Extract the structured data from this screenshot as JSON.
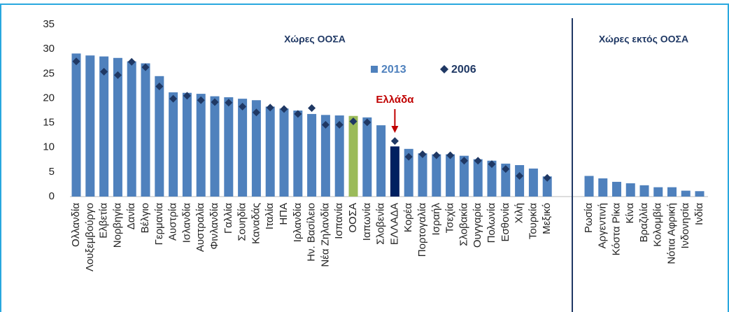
{
  "chart_data": {
    "type": "bar",
    "series": [
      {
        "name": "2013",
        "color": "#4f81bd",
        "marker": "bar"
      },
      {
        "name": "2006",
        "color": "#1f3864",
        "marker": "diamond"
      }
    ],
    "groups": [
      {
        "title": "Χώρες ΟΟΣΑ",
        "categories": [
          "Ολλανδία",
          "Λουξεμβούργο",
          "Ελβετία",
          "Νορβηγία",
          "Δανία",
          "Βέλγιο",
          "Γερμανία",
          "Αυστρία",
          "Ισλανδία",
          "Αυστραλία",
          "Φινλανδία",
          "Γαλλία",
          "Σουηδία",
          "Καναδάς",
          "Ιταλία",
          "ΗΠΑ",
          "Ιρλανδία",
          "Ην. Βασίλειο",
          "Νέα Ζηλανδία",
          "Ισπανία",
          "ΟΟΣΑ",
          "Ιαπωνία",
          "Σλοβενία",
          "ΕΛΛΑΔΑ",
          "Κορέα",
          "Πορτογαλία",
          "Ισραήλ",
          "Τσεχία",
          "Σλοβακία",
          "Ουγγαρία",
          "Πολωνία",
          "Εσθονία",
          "Χιλή",
          "Τουρκία",
          "Μεξικό"
        ],
        "values": [
          [
            29.1,
            28.7,
            28.5,
            28.2,
            27.5,
            27.1,
            24.5,
            21.2,
            21.1,
            20.9,
            20.4,
            20.2,
            19.9,
            19.6,
            18.3,
            17.9,
            17.5,
            16.8,
            16.6,
            16.5,
            16.4,
            16.1,
            14.5,
            10.2,
            9.7,
            8.8,
            8.6,
            8.6,
            8.3,
            7.6,
            7.3,
            6.7,
            6.4,
            5.7,
            4.1
          ],
          [
            27.5,
            null,
            25.4,
            24.7,
            27.4,
            26.3,
            22.4,
            19.9,
            20.5,
            19.6,
            19.2,
            19.1,
            18.3,
            17.1,
            18.1,
            17.8,
            16.8,
            18.0,
            14.6,
            14.6,
            15.3,
            15.1,
            null,
            11.3,
            8.1,
            8.6,
            8.4,
            8.4,
            7.3,
            7.3,
            6.6,
            5.6,
            4.2,
            null,
            3.8
          ]
        ],
        "bar_colors": [
          null,
          null,
          null,
          null,
          null,
          null,
          null,
          null,
          null,
          null,
          null,
          null,
          null,
          null,
          null,
          null,
          null,
          null,
          null,
          null,
          "#9bbb59",
          null,
          null,
          "#002060",
          null,
          null,
          null,
          null,
          null,
          null,
          null,
          null,
          null,
          null,
          null
        ]
      },
      {
        "title": "Χώρες εκτός ΟΟΣΑ",
        "categories": [
          "Ρωσία",
          "Αργεντινή",
          "Κόστα Ρίκα",
          "Κίνα",
          "Βραζιλία",
          "Κολομβία",
          "Νότια Αφρική",
          "Ινδονησία",
          "Ινδία"
        ],
        "values": [
          [
            4.2,
            3.7,
            3.0,
            2.7,
            2.3,
            1.9,
            1.9,
            1.2,
            1.1
          ],
          [
            null,
            null,
            null,
            null,
            null,
            null,
            null,
            null,
            null
          ]
        ],
        "bar_colors": [
          null,
          null,
          null,
          null,
          null,
          null,
          null,
          null,
          null
        ]
      }
    ],
    "annotation": {
      "text": "Ελλάδα",
      "color": "#c00000"
    },
    "ylim": [
      0,
      35
    ],
    "yticks": [
      0,
      5,
      10,
      15,
      20,
      25,
      30,
      35
    ],
    "grid": false
  }
}
